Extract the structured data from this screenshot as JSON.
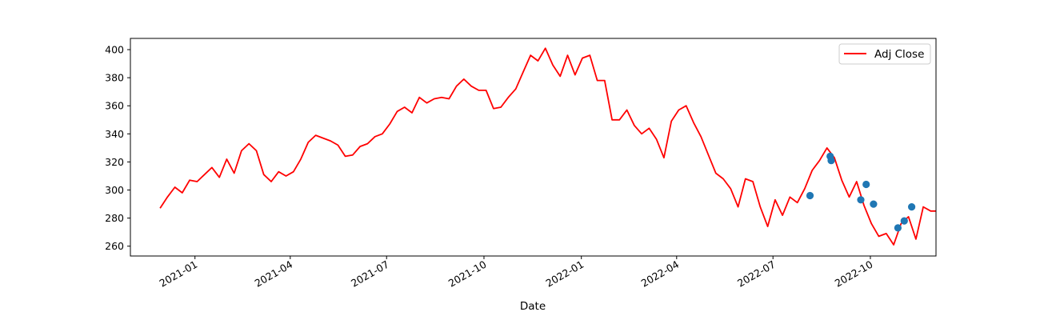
{
  "chart_data": {
    "type": "line",
    "xlabel": "Date",
    "ylabel": "",
    "ylim": [
      253,
      408
    ],
    "xlim": [
      "2020-11-01",
      "2022-12-02"
    ],
    "grid": false,
    "legend": {
      "placement": "top-right",
      "entries": [
        "Adj Close"
      ]
    },
    "colors": {
      "line": "#ff0000",
      "scatter": "#1f77b4"
    },
    "x_ticks": [
      {
        "date": "2021-01-01",
        "label": "2021-01"
      },
      {
        "date": "2021-04-01",
        "label": "2021-04"
      },
      {
        "date": "2021-07-01",
        "label": "2021-07"
      },
      {
        "date": "2021-10-01",
        "label": "2021-10"
      },
      {
        "date": "2022-01-01",
        "label": "2022-01"
      },
      {
        "date": "2022-04-01",
        "label": "2022-04"
      },
      {
        "date": "2022-07-01",
        "label": "2022-07"
      },
      {
        "date": "2022-10-01",
        "label": "2022-10"
      }
    ],
    "y_ticks": [
      260,
      280,
      300,
      320,
      340,
      360,
      380,
      400
    ],
    "series": [
      {
        "name": "Adj Close",
        "kind": "line",
        "points": [
          [
            "2020-11-29",
            287
          ],
          [
            "2020-12-06",
            295
          ],
          [
            "2020-12-13",
            302
          ],
          [
            "2020-12-20",
            298
          ],
          [
            "2020-12-27",
            307
          ],
          [
            "2021-01-03",
            306
          ],
          [
            "2021-01-10",
            311
          ],
          [
            "2021-01-17",
            316
          ],
          [
            "2021-01-24",
            309
          ],
          [
            "2021-01-31",
            322
          ],
          [
            "2021-02-07",
            312
          ],
          [
            "2021-02-14",
            328
          ],
          [
            "2021-02-21",
            333
          ],
          [
            "2021-02-28",
            328
          ],
          [
            "2021-03-07",
            311
          ],
          [
            "2021-03-14",
            306
          ],
          [
            "2021-03-21",
            313
          ],
          [
            "2021-03-28",
            310
          ],
          [
            "2021-04-04",
            313
          ],
          [
            "2021-04-11",
            322
          ],
          [
            "2021-04-18",
            334
          ],
          [
            "2021-04-25",
            339
          ],
          [
            "2021-05-02",
            337
          ],
          [
            "2021-05-09",
            335
          ],
          [
            "2021-05-16",
            332
          ],
          [
            "2021-05-23",
            324
          ],
          [
            "2021-05-30",
            325
          ],
          [
            "2021-06-06",
            331
          ],
          [
            "2021-06-13",
            333
          ],
          [
            "2021-06-20",
            338
          ],
          [
            "2021-06-27",
            340
          ],
          [
            "2021-07-04",
            347
          ],
          [
            "2021-07-11",
            356
          ],
          [
            "2021-07-18",
            359
          ],
          [
            "2021-07-25",
            355
          ],
          [
            "2021-08-01",
            366
          ],
          [
            "2021-08-08",
            362
          ],
          [
            "2021-08-15",
            365
          ],
          [
            "2021-08-22",
            366
          ],
          [
            "2021-08-29",
            365
          ],
          [
            "2021-09-05",
            374
          ],
          [
            "2021-09-12",
            379
          ],
          [
            "2021-09-19",
            374
          ],
          [
            "2021-09-26",
            371
          ],
          [
            "2021-10-03",
            371
          ],
          [
            "2021-10-10",
            358
          ],
          [
            "2021-10-17",
            359
          ],
          [
            "2021-10-24",
            366
          ],
          [
            "2021-10-31",
            372
          ],
          [
            "2021-11-07",
            384
          ],
          [
            "2021-11-14",
            396
          ],
          [
            "2021-11-21",
            392
          ],
          [
            "2021-11-28",
            401
          ],
          [
            "2021-12-05",
            389
          ],
          [
            "2021-12-12",
            381
          ],
          [
            "2021-12-19",
            396
          ],
          [
            "2021-12-26",
            382
          ],
          [
            "2022-01-02",
            394
          ],
          [
            "2022-01-09",
            396
          ],
          [
            "2022-01-16",
            378
          ],
          [
            "2022-01-23",
            378
          ],
          [
            "2022-01-30",
            350
          ],
          [
            "2022-02-06",
            350
          ],
          [
            "2022-02-13",
            357
          ],
          [
            "2022-02-20",
            346
          ],
          [
            "2022-02-27",
            340
          ],
          [
            "2022-03-06",
            344
          ],
          [
            "2022-03-13",
            336
          ],
          [
            "2022-03-20",
            323
          ],
          [
            "2022-03-27",
            349
          ],
          [
            "2022-04-03",
            357
          ],
          [
            "2022-04-10",
            360
          ],
          [
            "2022-04-17",
            348
          ],
          [
            "2022-04-24",
            338
          ],
          [
            "2022-05-01",
            325
          ],
          [
            "2022-05-08",
            312
          ],
          [
            "2022-05-15",
            308
          ],
          [
            "2022-05-22",
            301
          ],
          [
            "2022-05-29",
            288
          ],
          [
            "2022-06-05",
            308
          ],
          [
            "2022-06-12",
            306
          ],
          [
            "2022-06-19",
            288
          ],
          [
            "2022-06-26",
            274
          ],
          [
            "2022-07-03",
            293
          ],
          [
            "2022-07-10",
            282
          ],
          [
            "2022-07-17",
            295
          ],
          [
            "2022-07-24",
            291
          ],
          [
            "2022-07-31",
            301
          ],
          [
            "2022-08-07",
            314
          ],
          [
            "2022-08-14",
            321
          ],
          [
            "2022-08-21",
            330
          ],
          [
            "2022-08-28",
            323
          ],
          [
            "2022-09-04",
            307
          ],
          [
            "2022-09-11",
            295
          ],
          [
            "2022-09-18",
            306
          ],
          [
            "2022-09-25",
            289
          ],
          [
            "2022-10-02",
            276
          ],
          [
            "2022-10-09",
            267
          ],
          [
            "2022-10-16",
            269
          ],
          [
            "2022-10-23",
            261
          ],
          [
            "2022-10-30",
            276
          ],
          [
            "2022-11-06",
            281
          ],
          [
            "2022-11-13",
            265
          ],
          [
            "2022-11-20",
            288
          ],
          [
            "2022-11-27",
            285
          ],
          [
            "2022-12-02",
            285
          ]
        ]
      },
      {
        "kind": "scatter",
        "points": [
          [
            "2022-08-05",
            296
          ],
          [
            "2022-08-24",
            324
          ],
          [
            "2022-08-25",
            321
          ],
          [
            "2022-09-22",
            293
          ],
          [
            "2022-09-27",
            304
          ],
          [
            "2022-10-04",
            290
          ],
          [
            "2022-10-27",
            273
          ],
          [
            "2022-11-02",
            278
          ],
          [
            "2022-11-09",
            288
          ]
        ]
      }
    ]
  }
}
